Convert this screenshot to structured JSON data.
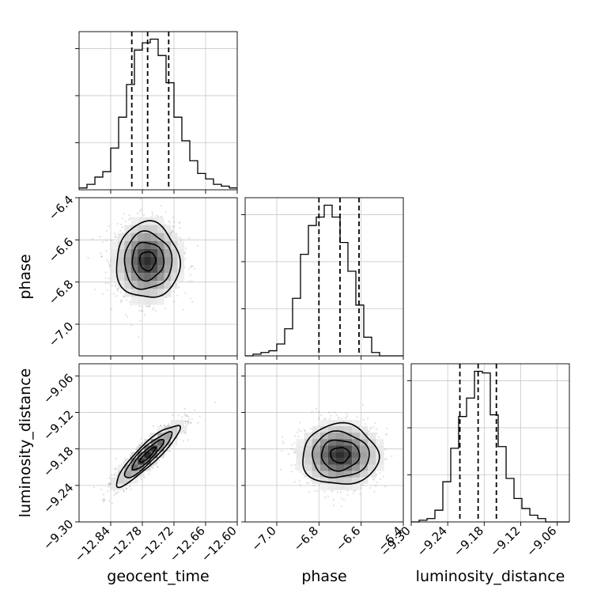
{
  "chart_data": {
    "type": "corner",
    "parameters": [
      {
        "name": "geocent_time",
        "label": "geocent_time",
        "range": [
          -12.9,
          -12.6
        ],
        "mean": -12.77,
        "sd": 0.03,
        "quantiles": [
          -12.8,
          -12.77,
          -12.73
        ],
        "ticks": [
          -12.84,
          -12.78,
          -12.72,
          -12.66,
          -12.6
        ],
        "tick_labels": [
          "−12.84",
          "−12.78",
          "−12.72",
          "−12.66",
          "−12.60"
        ]
      },
      {
        "name": "phase",
        "label": "phase",
        "range": [
          -7.15,
          -6.4
        ],
        "mean": -6.7,
        "sd": 0.09,
        "quantiles": [
          -6.8,
          -6.7,
          -6.61
        ],
        "ticks": [
          -7.0,
          -6.8,
          -6.6,
          -6.4
        ],
        "tick_labels": [
          "−7.0",
          "−6.8",
          "−6.6",
          "−6.4"
        ]
      },
      {
        "name": "luminosity_distance",
        "label": "luminosity_distance",
        "range": [
          -9.3,
          -9.04
        ],
        "mean": -9.19,
        "sd": 0.025,
        "quantiles": [
          -9.22,
          -9.19,
          -9.16
        ],
        "ticks": [
          -9.3,
          -9.24,
          -9.18,
          -9.12,
          -9.06
        ],
        "tick_labels": [
          "−9.30",
          "−9.24",
          "−9.18",
          "−9.12",
          "−9.06"
        ]
      }
    ],
    "histograms": [
      {
        "parameter": "geocent_time",
        "bins": 20,
        "counts": [
          1,
          3,
          7,
          10,
          23,
          40,
          58,
          77,
          81,
          83,
          74,
          59,
          40,
          27,
          16,
          9,
          6,
          3,
          2,
          1
        ]
      },
      {
        "parameter": "phase",
        "bins": 20,
        "counts": [
          0,
          1,
          2,
          3,
          7,
          16,
          34,
          60,
          77,
          82,
          89,
          82,
          67,
          50,
          30,
          11,
          2,
          0,
          0,
          0
        ]
      },
      {
        "parameter": "luminosity_distance",
        "bins": 20,
        "counts": [
          0,
          1,
          2,
          7,
          24,
          44,
          63,
          74,
          90,
          89,
          64,
          45,
          26,
          14,
          8,
          4,
          2,
          0,
          0,
          0
        ]
      }
    ],
    "pairs": [
      {
        "x": "geocent_time",
        "y": "phase",
        "correlation": 0.0
      },
      {
        "x": "geocent_time",
        "y": "luminosity_distance",
        "correlation": 0.9
      },
      {
        "x": "phase",
        "y": "luminosity_distance",
        "correlation": 0.0
      }
    ],
    "contour_levels": [
      0.5,
      1.0,
      1.5,
      2.0
    ],
    "quantile_lines": "dashed",
    "grid": true
  }
}
